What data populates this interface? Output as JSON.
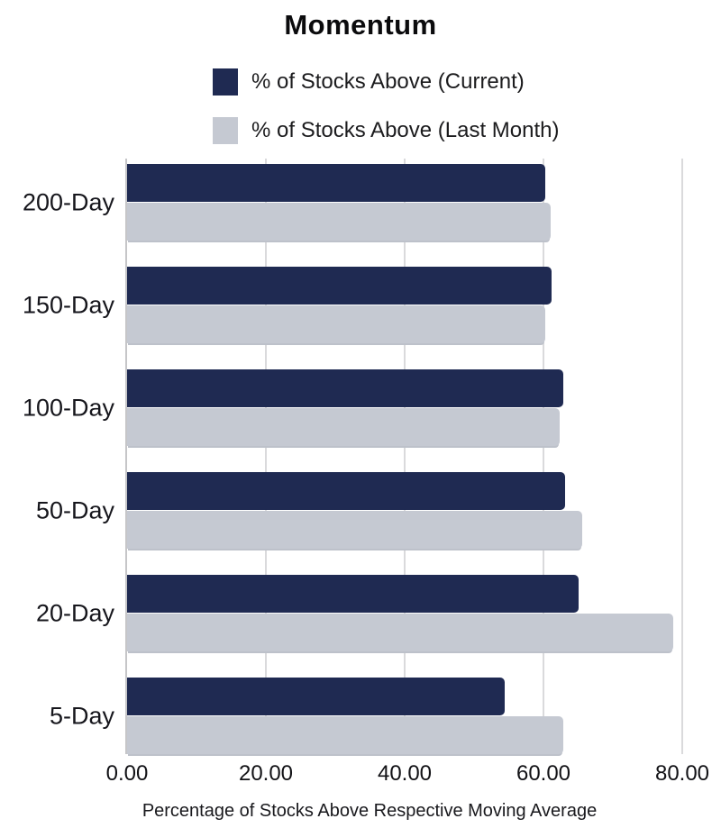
{
  "chart_data": {
    "type": "bar",
    "orientation": "horizontal",
    "title": "Momentum",
    "xlabel": "Percentage of Stocks Above Respective Moving Average",
    "categories": [
      "200-Day",
      "150-Day",
      "100-Day",
      "50-Day",
      "20-Day",
      "5-Day"
    ],
    "series": [
      {
        "name": "% of Stocks Above (Current)",
        "color": "#1F2A52",
        "values": [
          60.3,
          61.2,
          62.9,
          63.1,
          65.1,
          54.4
        ]
      },
      {
        "name": "% of Stocks Above (Last Month)",
        "color": "#C5C9D2",
        "values": [
          61.0,
          60.2,
          62.3,
          65.6,
          78.7,
          62.9
        ]
      }
    ],
    "xlim": [
      0,
      80
    ],
    "x_tick_labels": [
      "0.00",
      "20.00",
      "40.00",
      "60.00",
      "80.00"
    ],
    "grid": "vertical",
    "legend_position": "top",
    "colors": {
      "gridline": "#DADADC",
      "axis_line": "#C6C6C8",
      "text": "#141414"
    }
  }
}
